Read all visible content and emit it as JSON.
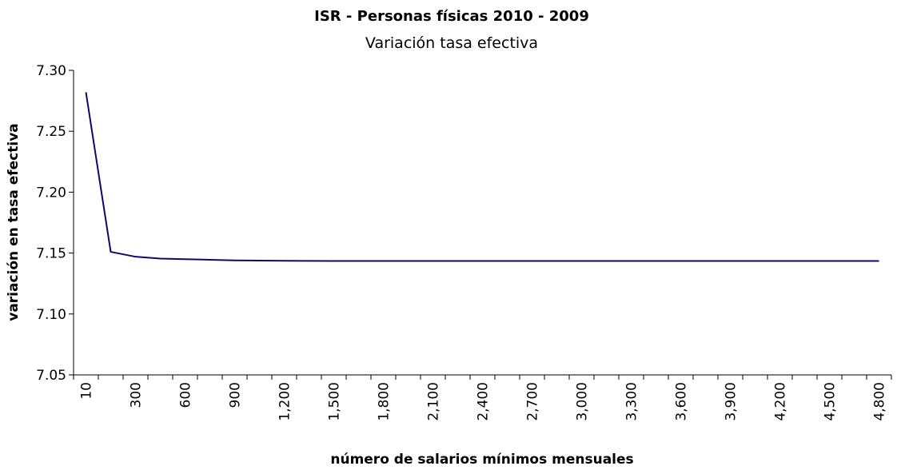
{
  "chart_data": {
    "type": "line",
    "title": "ISR - Personas físicas 2010 - 2009",
    "subtitle": "Variación tasa efectiva",
    "y_label": "variación en tasa efectiva",
    "x_label": "número de salarios mínimos mensuales",
    "categories": [
      "10",
      null,
      "300",
      null,
      "600",
      null,
      "900",
      null,
      "1,200",
      null,
      "1,500",
      null,
      "1,800",
      null,
      "2,100",
      null,
      "2,400",
      null,
      "2,700",
      null,
      "3,000",
      null,
      "3,300",
      null,
      "3,600",
      null,
      "3,900",
      null,
      "4,200",
      null,
      "4,500",
      null,
      "4,800"
    ],
    "series": [
      {
        "name": "variación tasa efectiva",
        "color": "#0a0a6e",
        "values": [
          7.282,
          7.151,
          7.147,
          7.1455,
          7.145,
          7.1445,
          7.144,
          7.1438,
          7.1437,
          7.1436,
          7.1435,
          7.1435,
          7.1435,
          7.1435,
          7.1435,
          7.1435,
          7.1435,
          7.1435,
          7.1435,
          7.1435,
          7.1435,
          7.1435,
          7.1435,
          7.1435,
          7.1435,
          7.1435,
          7.1435,
          7.1435,
          7.1435,
          7.1435,
          7.1435,
          7.1435,
          7.1435
        ]
      }
    ],
    "ylim": [
      7.05,
      7.3
    ],
    "yticks": [
      7.05,
      {
        "value": 7.1,
        "label": "7.10"
      },
      7.15,
      {
        "value": 7.2,
        "label": "7.20"
      },
      7.25,
      {
        "value": 7.3,
        "label": "7.30"
      }
    ],
    "grid": false,
    "legend": false
  }
}
